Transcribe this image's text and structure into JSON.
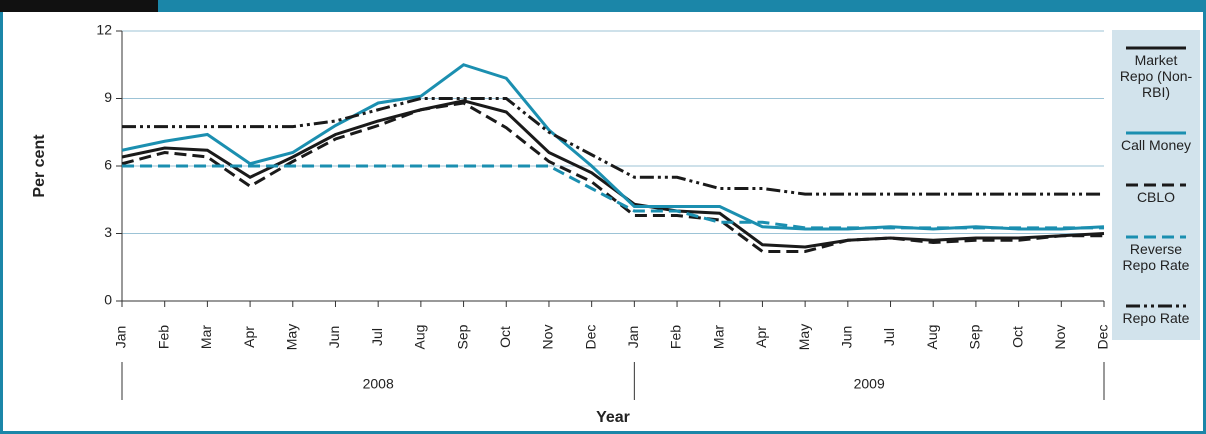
{
  "chart_data": {
    "type": "line",
    "y_label": "Per cent",
    "x_label": "Year",
    "categories": [
      "Jan",
      "Feb",
      "Mar",
      "Apr",
      "May",
      "Jun",
      "Jul",
      "Aug",
      "Sep",
      "Oct",
      "Nov",
      "Dec",
      "Jan",
      "Feb",
      "Mar",
      "Apr",
      "May",
      "Jun",
      "Jul",
      "Aug",
      "Sep",
      "Oct",
      "Nov",
      "Dec"
    ],
    "category_groups": [
      {
        "label": "2008",
        "count": 12
      },
      {
        "label": "2009",
        "count": 12
      }
    ],
    "ylim": [
      0,
      12
    ],
    "yticks": [
      0,
      3,
      6,
      9,
      12
    ],
    "grid": true,
    "series": [
      {
        "name": "Market Repo (Non-RBI)",
        "color": "#1a1a1a",
        "line_style": "solid",
        "values": [
          6.4,
          6.8,
          6.7,
          5.5,
          6.4,
          7.4,
          8.0,
          8.5,
          8.9,
          8.4,
          6.6,
          5.7,
          4.3,
          4.0,
          3.9,
          2.5,
          2.4,
          2.7,
          2.8,
          2.7,
          2.8,
          2.8,
          2.9,
          3.0
        ]
      },
      {
        "name": "Call Money",
        "color": "#1b8fb0",
        "line_style": "solid",
        "values": [
          6.7,
          7.1,
          7.4,
          6.1,
          6.6,
          7.8,
          8.8,
          9.1,
          10.5,
          9.9,
          7.6,
          6.0,
          4.2,
          4.2,
          4.2,
          3.3,
          3.2,
          3.2,
          3.3,
          3.2,
          3.3,
          3.2,
          3.2,
          3.3
        ]
      },
      {
        "name": "CBLO",
        "color": "#1a1a1a",
        "line_style": "dashed",
        "values": [
          6.1,
          6.6,
          6.4,
          5.1,
          6.2,
          7.2,
          7.8,
          8.5,
          8.8,
          7.7,
          6.2,
          5.3,
          3.8,
          3.8,
          3.6,
          2.2,
          2.2,
          2.7,
          2.8,
          2.6,
          2.7,
          2.7,
          2.9,
          2.9
        ]
      },
      {
        "name": "Reverse Repo Rate",
        "color": "#1b8fb0",
        "line_style": "dashed",
        "values": [
          6,
          6,
          6,
          6,
          6,
          6,
          6,
          6,
          6,
          6,
          6,
          5,
          4,
          4,
          3.5,
          3.5,
          3.25,
          3.25,
          3.25,
          3.25,
          3.25,
          3.25,
          3.25,
          3.25
        ]
      },
      {
        "name": "Repo Rate",
        "color": "#1a1a1a",
        "line_style": "dashdot",
        "values": [
          7.75,
          7.75,
          7.75,
          7.75,
          7.75,
          8,
          8.5,
          9,
          9,
          9,
          7.5,
          6.5,
          5.5,
          5.5,
          5,
          5,
          4.75,
          4.75,
          4.75,
          4.75,
          4.75,
          4.75,
          4.75,
          4.75
        ]
      }
    ]
  }
}
